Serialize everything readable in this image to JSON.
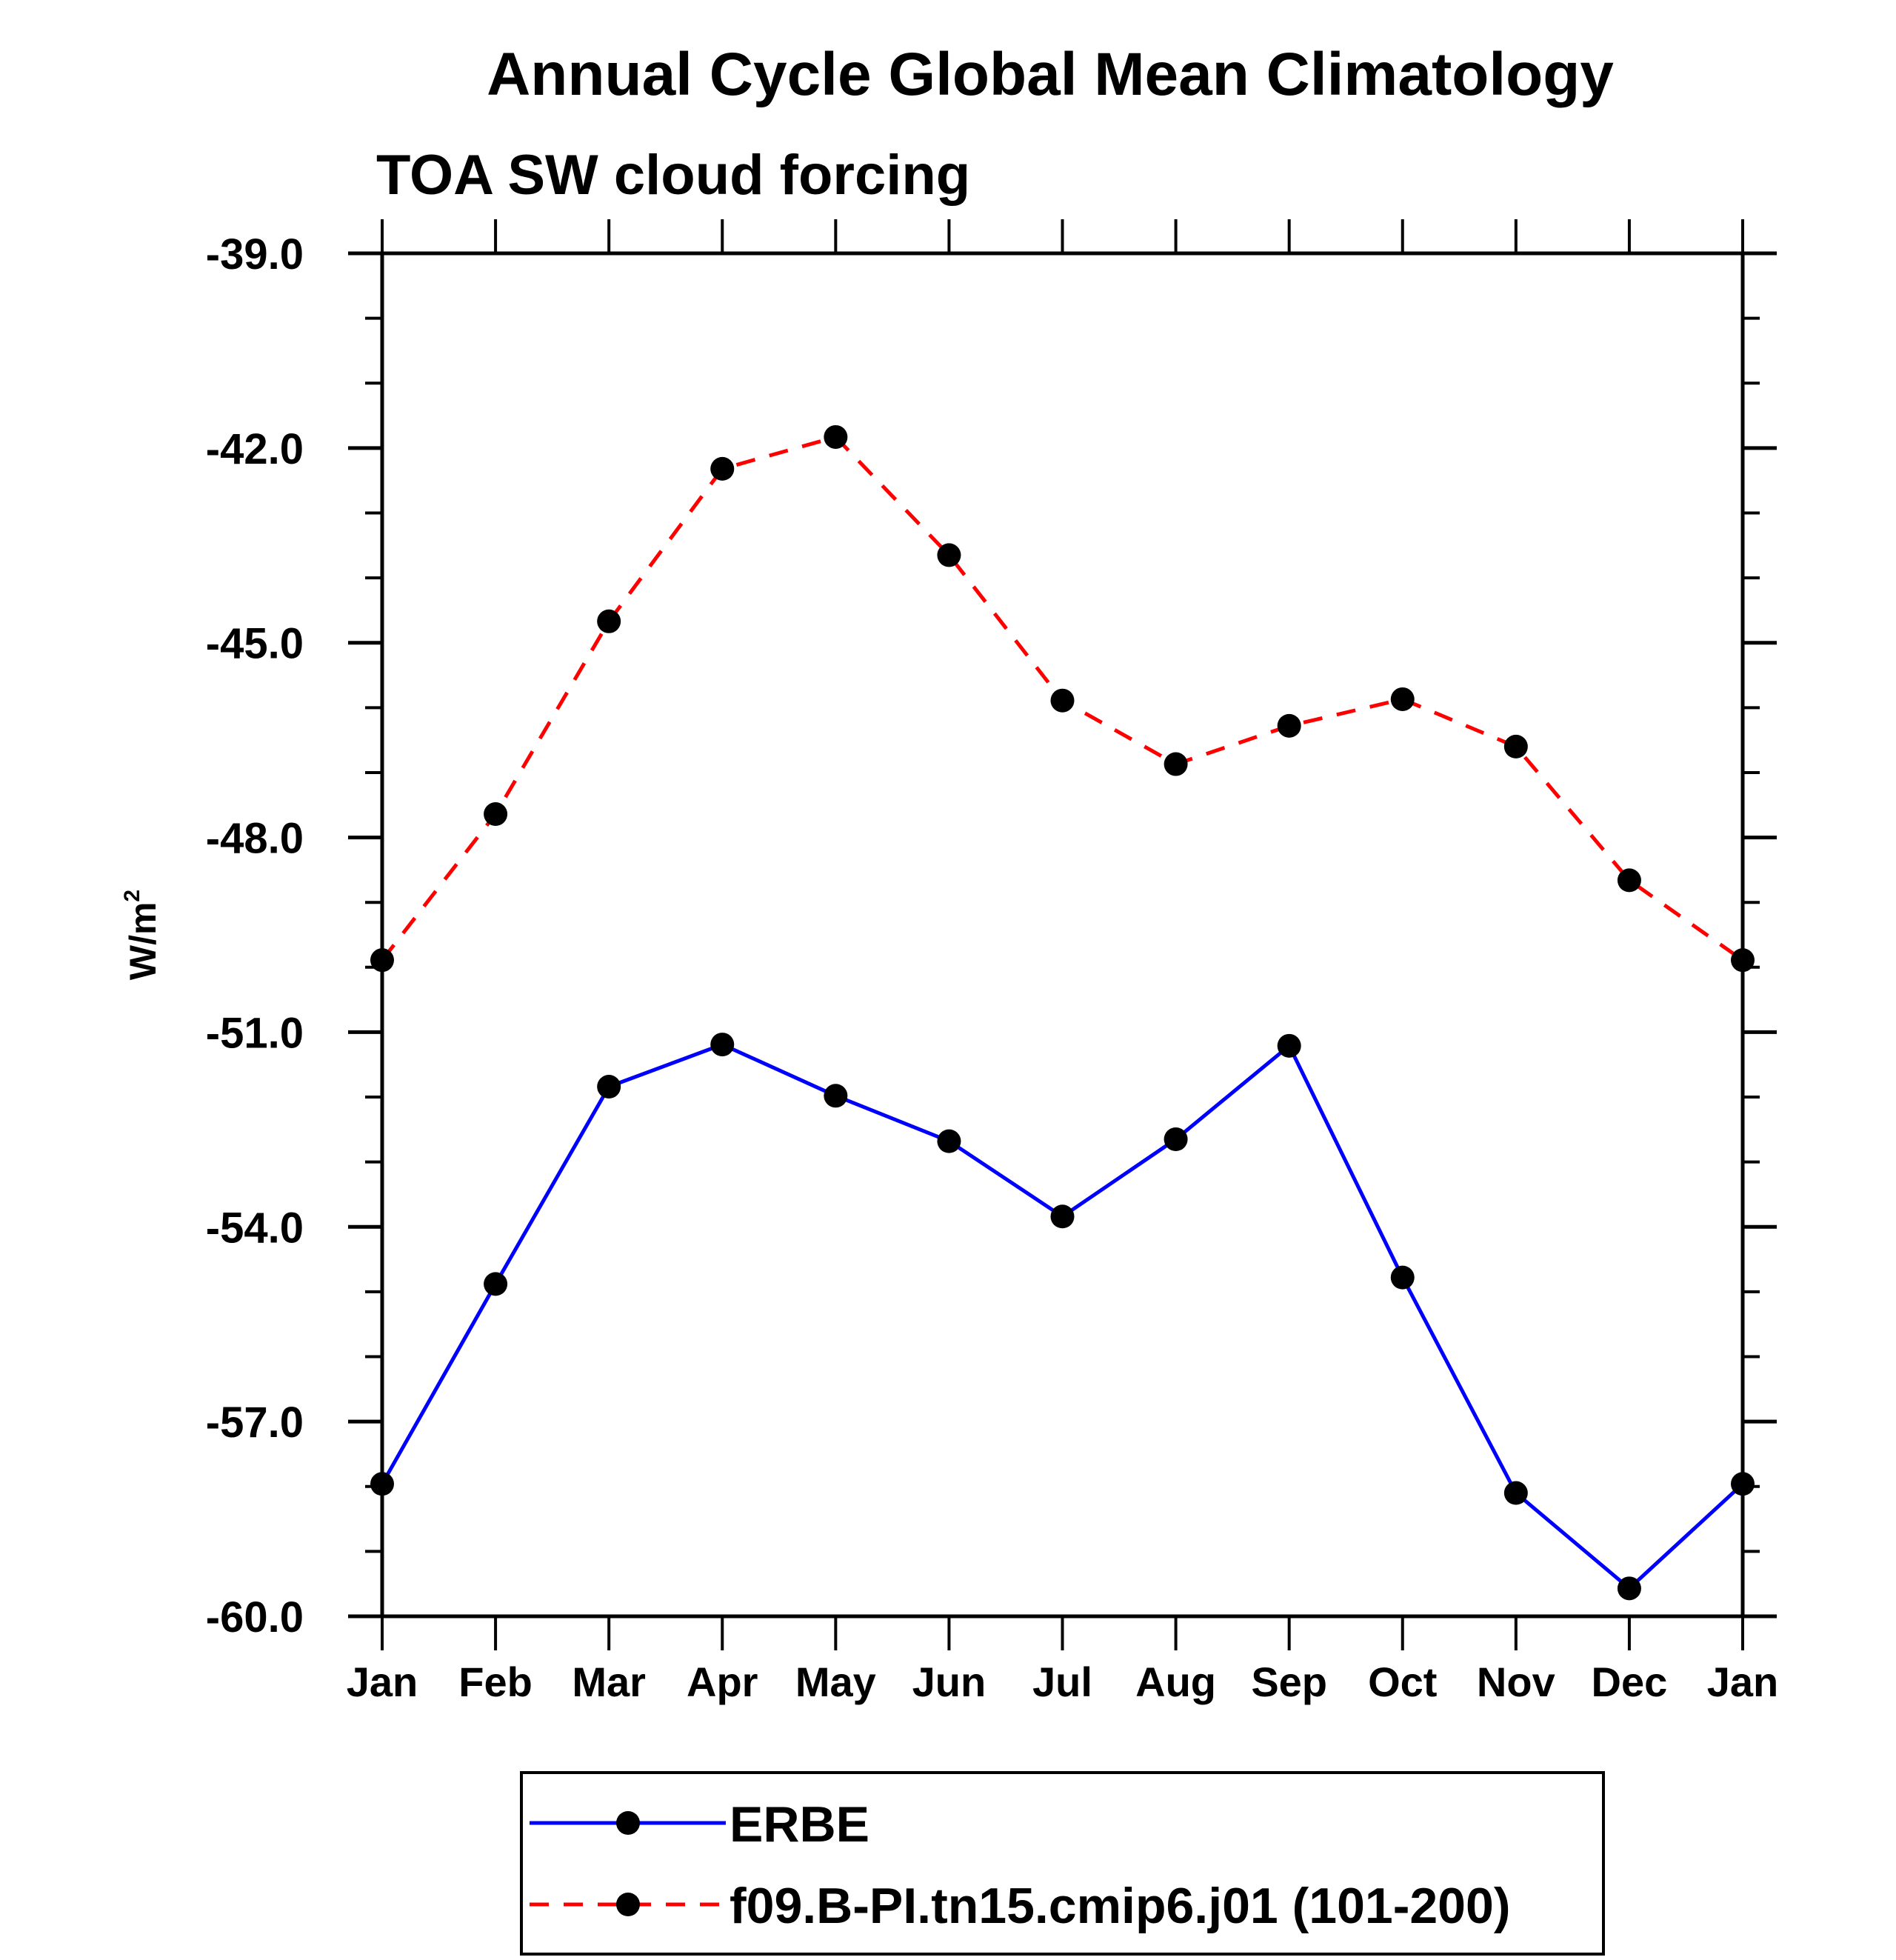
{
  "chart_data": {
    "type": "line",
    "title": "Annual Cycle Global Mean Climatology",
    "subtitle": "TOA SW cloud forcing",
    "xlabel": "",
    "ylabel": "W/m",
    "ylabel_superscript": "2",
    "categories": [
      "Jan",
      "Feb",
      "Mar",
      "Apr",
      "May",
      "Jun",
      "Jul",
      "Aug",
      "Sep",
      "Oct",
      "Nov",
      "Dec",
      "Jan"
    ],
    "ylim": [
      -60.0,
      -39.0
    ],
    "yticks": [
      -39.0,
      -42.0,
      -45.0,
      -48.0,
      -51.0,
      -54.0,
      -57.0,
      -60.0
    ],
    "ytick_labels": [
      "-39.0",
      "-42.0",
      "-45.0",
      "-48.0",
      "-51.0",
      "-54.0",
      "-57.0",
      "-60.0"
    ],
    "yminor_step": 1.0,
    "grid": false,
    "legend_position": "bottom-center",
    "series": [
      {
        "name": "ERBE",
        "color": "#0000ff",
        "line_style": "solid",
        "marker": "filled-circle",
        "marker_color": "#000000",
        "values": [
          -57.96,
          -54.88,
          -51.84,
          -51.19,
          -51.98,
          -52.68,
          -53.84,
          -52.65,
          -51.21,
          -54.78,
          -58.1,
          -59.57,
          -57.96
        ]
      },
      {
        "name": "f09.B-PI.tn15.cmip6.j01 (101-200)",
        "color": "#ff0000",
        "line_style": "dashed",
        "marker": "filled-circle",
        "marker_color": "#000000",
        "values": [
          -49.89,
          -47.64,
          -44.67,
          -42.32,
          -41.83,
          -43.65,
          -45.89,
          -46.87,
          -46.28,
          -45.87,
          -46.6,
          -48.66,
          -49.89
        ]
      }
    ]
  }
}
